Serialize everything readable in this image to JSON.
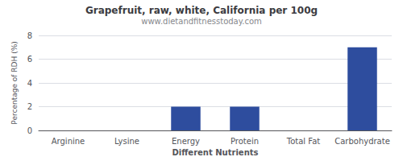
{
  "chart_data": {
    "type": "bar",
    "title": "Grapefruit, raw, white, California per 100g",
    "subtitle": "www.dietandfitnesstoday.com",
    "xlabel": "Different Nutrients",
    "ylabel": "Percentage of RDH (%)",
    "categories": [
      "Arginine",
      "Lysine",
      "Energy",
      "Protein",
      "Total Fat",
      "Carbohydrate"
    ],
    "values": [
      0.0,
      0.0,
      2.0,
      2.0,
      0.0,
      7.0
    ],
    "color": "#2e4d9e",
    "ylim": [
      0,
      8
    ],
    "yticks": [
      0,
      2,
      4,
      6,
      8
    ],
    "grid": true
  }
}
